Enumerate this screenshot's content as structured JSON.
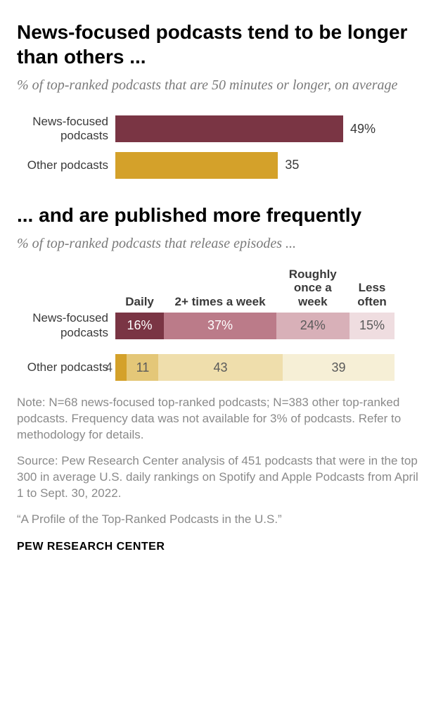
{
  "title1": "News-focused podcasts tend to be longer than others ...",
  "subtitle1": "% of top-ranked podcasts that are 50 minutes or longer, on average",
  "title1_fontsize": 28,
  "subtitle_fontsize": 20,
  "label_fontsize": 17,
  "value_fontsize": 18,
  "header_fontsize": 17,
  "note_fontsize": 17,
  "footer_fontsize": 16,
  "bar_chart": {
    "max_width_pct": 75,
    "rows": [
      {
        "label": "News-focused podcasts",
        "value": 49,
        "display": "49%",
        "color": "#7a3544"
      },
      {
        "label": "Other podcasts",
        "value": 35,
        "display": "35",
        "color": "#d4a12a"
      }
    ]
  },
  "title2": "... and are published more frequently",
  "subtitle2": "% of top-ranked podcasts that release episodes ...",
  "stacked": {
    "headers": [
      {
        "text": "Daily",
        "width_pct": 16
      },
      {
        "text": "2+ times a week",
        "width_pct": 37
      },
      {
        "text": "Roughly once a week",
        "width_pct": 24
      },
      {
        "text": "Less often",
        "width_pct": 15
      }
    ],
    "total_width_pct": 92,
    "rows": [
      {
        "label": "News-focused podcasts",
        "segments": [
          {
            "value": 16,
            "display": "16%",
            "color": "#7a3544",
            "text_color": "#ffffff"
          },
          {
            "value": 37,
            "display": "37%",
            "color": "#bb7b89",
            "text_color": "#ffffff"
          },
          {
            "value": 24,
            "display": "24%",
            "color": "#d8b0b8",
            "text_color": "#5a5a5a"
          },
          {
            "value": 15,
            "display": "15%",
            "color": "#efdde0",
            "text_color": "#5a5a5a"
          }
        ]
      },
      {
        "label": "Other podcasts",
        "segments": [
          {
            "value": 4,
            "display": "4",
            "color": "#d4a12a",
            "text_color": "#5a5a5a",
            "label_outside_left": true
          },
          {
            "value": 11,
            "display": "11",
            "color": "#e4c778",
            "text_color": "#5a5a5a"
          },
          {
            "value": 43,
            "display": "43",
            "color": "#efdeac",
            "text_color": "#5a5a5a"
          },
          {
            "value": 39,
            "display": "39",
            "color": "#f6efd6",
            "text_color": "#5a5a5a"
          }
        ]
      }
    ]
  },
  "note": "Note: N=68 news-focused top-ranked podcasts; N=383 other top-ranked podcasts. Frequency data was not available for 3% of podcasts. Refer to methodology for details.",
  "source": "Source: Pew Research Center analysis of 451 podcasts that were in the top 300 in average U.S. daily rankings on Spotify and Apple Podcasts from April 1 to Sept. 30, 2022.",
  "quote": "“A Profile of the Top-Ranked Podcasts in the U.S.”",
  "footer": "PEW RESEARCH CENTER"
}
